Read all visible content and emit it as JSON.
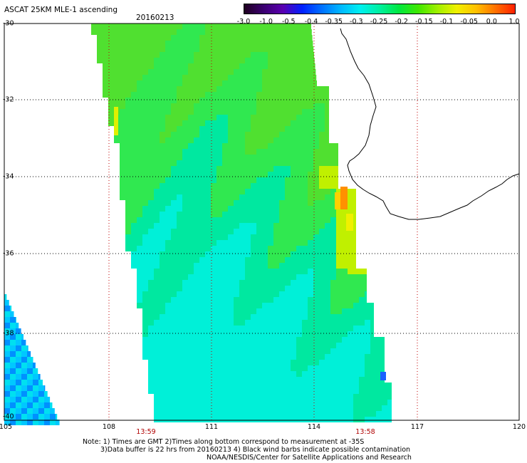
{
  "title": "ASCAT 25KM MLE-1 ascending",
  "date": "20160213",
  "colorbar": {
    "labels": [
      "-3.0",
      "-1.0",
      "-0.5",
      "-0.4",
      "-0.35",
      "-0.3",
      "-0.25",
      "-0.2",
      "-0.15",
      "-0.1",
      "-0.05",
      "0.0",
      "1.0"
    ],
    "colors": [
      "#200020",
      "#3a0070",
      "#5a00b0",
      "#0020ff",
      "#0070ff",
      "#00b8ff",
      "#00f0f0",
      "#00f0a0",
      "#00e840",
      "#40e800",
      "#a0f000",
      "#f0f000",
      "#ffc000",
      "#ff7000",
      "#ff2000"
    ]
  },
  "lat_labels": [
    "-30",
    "-32",
    "-34",
    "-36",
    "-38",
    "-40"
  ],
  "lon_labels": [
    "105",
    "108",
    "111",
    "114",
    "117",
    "120"
  ],
  "times": [
    "13:59",
    "13:58"
  ],
  "notes": [
    "Note: 1) Times are GMT 2)Times along bottom correspond to measurement at -35S",
    "3)Data buffer is 22 hrs from 20160213 4) Black wind barbs indicate possible contamination",
    "NOAA/NESDIS/Center for Satellite Applications and Research"
  ]
}
